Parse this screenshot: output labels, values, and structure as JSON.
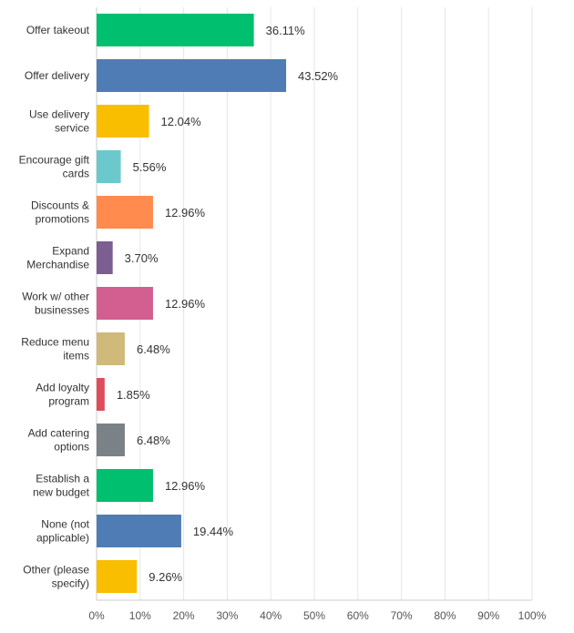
{
  "chart_data": {
    "type": "bar",
    "orientation": "horizontal",
    "categories": [
      [
        "Offer takeout"
      ],
      [
        "Offer delivery"
      ],
      [
        "Use delivery",
        "service"
      ],
      [
        "Encourage gift",
        "cards"
      ],
      [
        "Discounts &",
        "promotions"
      ],
      [
        "Expand",
        "Merchandise"
      ],
      [
        "Work w/ other",
        "businesses"
      ],
      [
        "Reduce menu",
        "items"
      ],
      [
        "Add loyalty",
        "program"
      ],
      [
        "Add catering",
        "options"
      ],
      [
        "Establish a",
        "new budget"
      ],
      [
        "None (not",
        "applicable)"
      ],
      [
        "Other (please",
        "specify)"
      ]
    ],
    "values": [
      36.11,
      43.52,
      12.04,
      5.56,
      12.96,
      3.7,
      12.96,
      6.48,
      1.85,
      6.48,
      12.96,
      19.44,
      9.26
    ],
    "value_labels": [
      "36.11%",
      "43.52%",
      "12.04%",
      "5.56%",
      "12.96%",
      "3.70%",
      "12.96%",
      "6.48%",
      "1.85%",
      "6.48%",
      "12.96%",
      "19.44%",
      "9.26%"
    ],
    "colors": [
      "#00bf6f",
      "#507cb6",
      "#f9be00",
      "#6bc8cd",
      "#ff8b4f",
      "#7d5e90",
      "#d25f90",
      "#cfba7a",
      "#de4e5a",
      "#7b8287",
      "#00bf6f",
      "#507cb6",
      "#f9be00"
    ],
    "xlim": [
      0,
      100
    ],
    "xticks": [
      0,
      10,
      20,
      30,
      40,
      50,
      60,
      70,
      80,
      90,
      100
    ],
    "xtick_labels": [
      "0%",
      "10%",
      "20%",
      "30%",
      "40%",
      "50%",
      "60%",
      "70%",
      "80%",
      "90%",
      "100%"
    ],
    "grid": true,
    "title": "",
    "xlabel": "",
    "ylabel": ""
  }
}
